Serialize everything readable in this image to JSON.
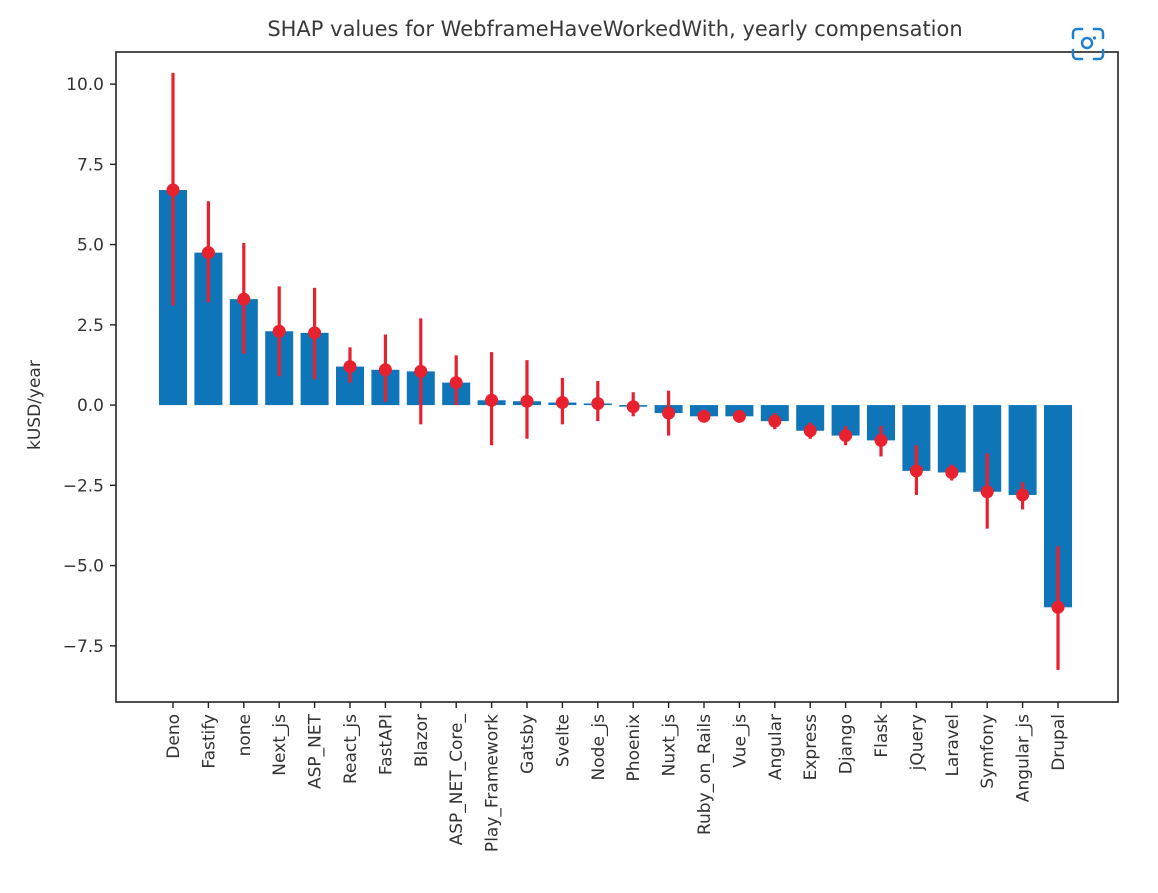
{
  "chart_data": {
    "type": "bar",
    "title": "SHAP values for WebframeHaveWorkedWith, yearly compensation",
    "xlabel": "",
    "ylabel": "kUSD/year",
    "ylim": [
      -9.25,
      11.0
    ],
    "yticks": [
      10.0,
      7.5,
      5.0,
      2.5,
      0.0,
      -2.5,
      -5.0,
      -7.5
    ],
    "ytick_labels": [
      "10.0",
      "7.5",
      "5.0",
      "2.5",
      "0.0",
      "−2.5",
      "−5.0",
      "−7.5"
    ],
    "categories": [
      "Deno",
      "Fastify",
      "none",
      "Next_js",
      "ASP_NET",
      "React_js",
      "FastAPI",
      "Blazor",
      "ASP_NET_Core_",
      "Play_Framework",
      "Gatsby",
      "Svelte",
      "Node_js",
      "Phoenix",
      "Nuxt_js",
      "Ruby_on_Rails",
      "Vue_js",
      "Angular",
      "Express",
      "Django",
      "Flask",
      "jQuery",
      "Laravel",
      "Symfony",
      "Angular_js",
      "Drupal"
    ],
    "values": [
      6.7,
      4.75,
      3.3,
      2.3,
      2.25,
      1.2,
      1.1,
      1.05,
      0.7,
      0.15,
      0.12,
      0.08,
      0.05,
      -0.05,
      -0.25,
      -0.35,
      -0.35,
      -0.5,
      -0.8,
      -0.95,
      -1.1,
      -2.05,
      -2.1,
      -2.7,
      -2.8,
      -6.3
    ],
    "error_low": [
      3.1,
      3.2,
      1.6,
      0.9,
      0.8,
      0.7,
      0.1,
      -0.6,
      0.0,
      -1.25,
      -1.05,
      -0.6,
      -0.5,
      -0.35,
      -0.95,
      -0.5,
      -0.55,
      -0.75,
      -1.05,
      -1.25,
      -1.6,
      -2.8,
      -2.35,
      -3.85,
      -3.25,
      -8.25
    ],
    "error_high": [
      10.35,
      6.35,
      5.05,
      3.7,
      3.65,
      1.8,
      2.2,
      2.7,
      1.55,
      1.65,
      1.4,
      0.85,
      0.75,
      0.4,
      0.45,
      -0.2,
      -0.15,
      -0.25,
      -0.55,
      -0.65,
      -0.65,
      -1.25,
      -1.85,
      -1.5,
      -2.4,
      -4.4
    ],
    "colors": {
      "bar": "#0e75b8",
      "error": "#e8212f",
      "axis": "#222222",
      "icon": "#1f7fd0"
    },
    "grid": false,
    "legend": "none"
  },
  "toolbar": {
    "scan_icon": "scan-icon"
  }
}
